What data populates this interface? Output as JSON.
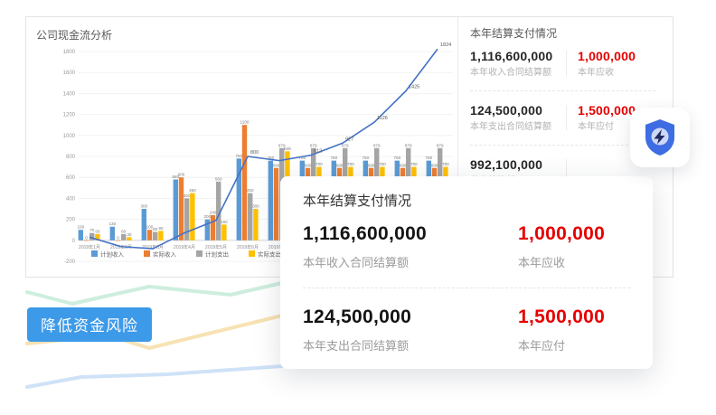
{
  "chart_panel": {
    "title": "公司现金流分析"
  },
  "chart_data": {
    "type": "bar",
    "title": "公司现金流分析",
    "categories": [
      "2019年1月",
      "2019年2月",
      "2019年3月",
      "2019年4月",
      "2019年5月",
      "2019年6月",
      "2019年7月",
      "2019年8月",
      "2019年9月",
      "2019年10月",
      "2019年11月",
      "2019年12月"
    ],
    "series": [
      {
        "name": "计划收入",
        "type": "bar",
        "color": "#5b9bd5",
        "values": [
          100,
          130,
          300,
          580,
          200,
          780,
          760,
          760,
          760,
          760,
          760,
          760
        ]
      },
      {
        "name": "实际收入",
        "type": "bar",
        "color": "#ed7d31",
        "values": [
          0,
          0,
          100,
          600,
          240,
          1100,
          690,
          690,
          690,
          690,
          690,
          690
        ]
      },
      {
        "name": "计划支出",
        "type": "bar",
        "color": "#a5a5a5",
        "values": [
          70,
          60,
          80,
          400,
          560,
          450,
          879,
          879,
          879,
          879,
          879,
          879
        ]
      },
      {
        "name": "实际支出",
        "type": "bar",
        "color": "#ffc000",
        "values": [
          60,
          30,
          90,
          450,
          150,
          300,
          849,
          700,
          700,
          700,
          700,
          700
        ]
      },
      {
        "name": "trend",
        "type": "line",
        "color": "#4472c4",
        "values": [
          30,
          -60,
          -80,
          70,
          190,
          800,
          760,
          812,
          927,
          1126,
          1425,
          1824
        ]
      }
    ],
    "ylim": [
      -200,
      1800
    ],
    "ytick_step": 200,
    "grid": true,
    "legend": [
      "计划收入",
      "实际收入",
      "计划支出",
      "实际支出"
    ],
    "legend_position": "bottom"
  },
  "stats_panel": {
    "title": "本年结算支付情况",
    "rows": [
      {
        "left_value": "1,116,600,000",
        "left_label": "本年收入合同结算额",
        "right_value": "1,000,000",
        "right_label": "本年应收"
      },
      {
        "left_value": "124,500,000",
        "left_label": "本年支出合同结算额",
        "right_value": "1,500,000",
        "right_label": "本年应付"
      },
      {
        "left_value": "992,100,000",
        "left_label": "收支结算差",
        "right_value": "",
        "right_label": ""
      }
    ]
  },
  "overlay_card": {
    "title": "本年结算支付情况",
    "rows": [
      {
        "left_value": "1,116,600,000",
        "left_label": "本年收入合同结算额",
        "right_value": "1,000,000",
        "right_label": "本年应收"
      },
      {
        "left_value": "124,500,000",
        "left_label": "本年支出合同结算额",
        "right_value": "1,500,000",
        "right_label": "本年应付"
      }
    ]
  },
  "risk_tag": {
    "label": "降低资金风险",
    "bg": "#3d9ae8"
  },
  "colors": {
    "red_value": "#e60000",
    "line": "#4472c4",
    "shield": "#3e6ce2",
    "shield_inner": "#ccd8f8",
    "bolt": "#1f2a5e",
    "decor_teal": "#cdeedd",
    "decor_yellow": "#f7e2b3",
    "decor_blue": "#cfe2f7"
  }
}
